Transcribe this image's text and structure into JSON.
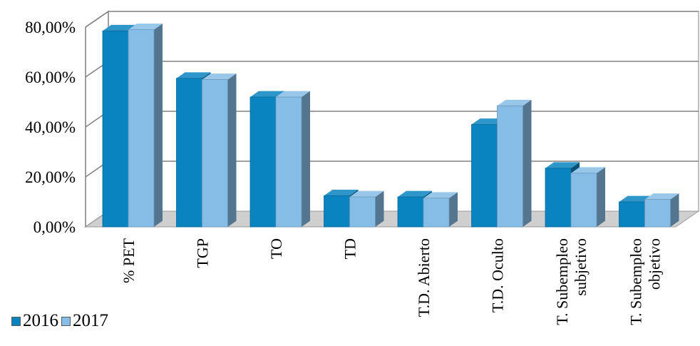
{
  "chart_data": {
    "type": "bar",
    "title": "",
    "xlabel": "",
    "ylabel": "",
    "categories": [
      "% PET",
      "TGP",
      "TO",
      "TD",
      "T.D. Abierto",
      "T.D. Oculto",
      "T. Subempleo subjetivo",
      "T. Subempleo objetivo"
    ],
    "series": [
      {
        "name": "2016",
        "values": [
          78.5,
          59.5,
          52.0,
          12.5,
          12.0,
          41.0,
          23.5,
          10.0
        ],
        "color": "#0a84c0"
      },
      {
        "name": "2017",
        "values": [
          79.0,
          59.0,
          52.0,
          12.0,
          11.5,
          48.5,
          21.5,
          11.0
        ],
        "color": "#86bde6"
      }
    ],
    "ylim": [
      0,
      80
    ],
    "yticks": [
      "0,00%",
      "20,00%",
      "40,00%",
      "60,00%",
      "80,00%"
    ],
    "grid": true,
    "legend": "bottom-left"
  }
}
